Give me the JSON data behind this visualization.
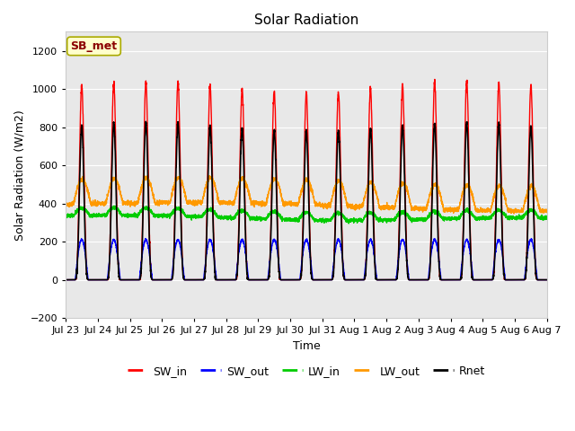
{
  "title": "Solar Radiation",
  "xlabel": "Time",
  "ylabel": "Solar Radiation (W/m2)",
  "ylim": [
    -200,
    1300
  ],
  "yticks": [
    -200,
    0,
    200,
    400,
    600,
    800,
    1000,
    1200
  ],
  "label_tag": "SB_met",
  "n_days": 15,
  "colors": {
    "SW_in": "#ff0000",
    "SW_out": "#0000ff",
    "LW_in": "#00cc00",
    "LW_out": "#ff9900",
    "Rnet": "#000000"
  },
  "fig_bg_color": "#ffffff",
  "plot_bg_color": "#e8e8e8",
  "tick_labels": [
    "Jul 23",
    "Jul 24",
    "Jul 25",
    "Jul 26",
    "Jul 27",
    "Jul 28",
    "Jul 29",
    "Jul 30",
    "Jul 31",
    "Aug 1",
    "Aug 2",
    "Aug 3",
    "Aug 4",
    "Aug 5",
    "Aug 6",
    "Aug 7"
  ]
}
